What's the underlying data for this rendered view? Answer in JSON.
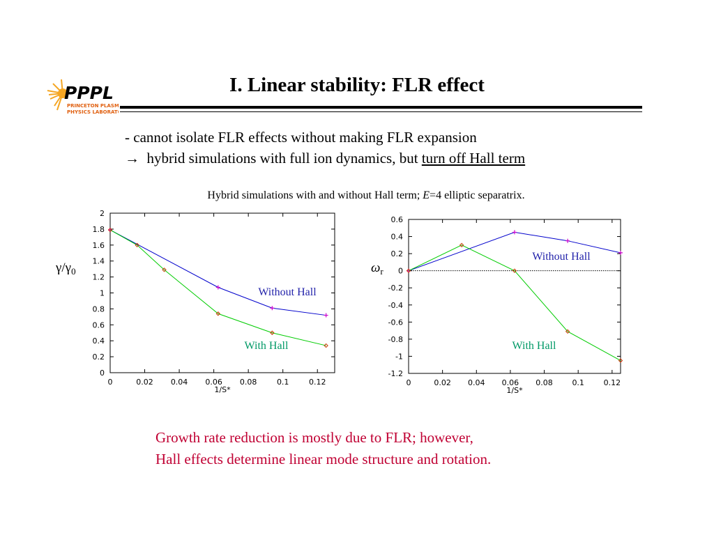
{
  "logo": {
    "text": "PPPL",
    "subtext": [
      "PRINCETON PLASMA",
      "PHYSICS LABORATORY"
    ]
  },
  "title": "I.  Linear stability: FLR effect",
  "bullets": {
    "line1": "- cannot isolate FLR effects without making FLR expansion",
    "line2_arrow": "→",
    "line2_text": "  hybrid simulations with full ion dynamics, but ",
    "line2_underlined": "turn off Hall term"
  },
  "caption": {
    "pre": "Hybrid simulations with and without Hall term; ",
    "var": "E",
    "post": "=4 elliptic separatrix."
  },
  "ylabels": {
    "left_main": "γ/γ",
    "left_sub": "0",
    "right_main": "ω",
    "right_sub": "r"
  },
  "conclusion": {
    "line1": "Growth rate reduction is mostly due to FLR; however,",
    "line2": "Hall effects determine linear mode structure and rotation."
  },
  "colors": {
    "without_hall": "#0000cc",
    "with_hall": "#00cc00",
    "without_hall_marker": "#cc00cc",
    "with_hall_marker": "#cc3300",
    "without_label": "#2222aa",
    "with_label": "#009966",
    "conclusion": "#c00033"
  },
  "chart_data": [
    {
      "type": "line",
      "xlabel": "1/S*",
      "ylabel": "γ/γ0",
      "xlim": [
        0,
        0.13
      ],
      "ylim": [
        0,
        2
      ],
      "xticks": [
        "0",
        "0.02",
        "0.04",
        "0.06",
        "0.08",
        "0.1",
        "0.12"
      ],
      "yticks": [
        "0",
        "0.2",
        "0.4",
        "0.6",
        "0.8",
        "1",
        "1.2",
        "1.4",
        "1.6",
        "1.8",
        "2"
      ],
      "zero_line": false,
      "series": [
        {
          "name": "Without Hall",
          "x": [
            0,
            0.0625,
            0.0938,
            0.125
          ],
          "y": [
            1.79,
            1.07,
            0.81,
            0.72
          ]
        },
        {
          "name": "With Hall",
          "x": [
            0,
            0.0156,
            0.0313,
            0.0625,
            0.0938,
            0.125
          ],
          "y": [
            1.79,
            1.6,
            1.29,
            0.74,
            0.5,
            0.34
          ]
        }
      ]
    },
    {
      "type": "line",
      "xlabel": "1/S*",
      "ylabel": "ωr",
      "xlim": [
        0,
        0.125
      ],
      "ylim": [
        -1.2,
        0.6
      ],
      "xticks": [
        "0",
        "0.02",
        "0.04",
        "0.06",
        "0.08",
        "0.1",
        "0.12"
      ],
      "yticks": [
        "-1.2",
        "-1",
        "-0.8",
        "-0.6",
        "-0.4",
        "-0.2",
        "0",
        "0.2",
        "0.4",
        "0.6"
      ],
      "zero_line": true,
      "series": [
        {
          "name": "Without Hall",
          "x": [
            0,
            0.0625,
            0.0938,
            0.125
          ],
          "y": [
            0,
            0.45,
            0.35,
            0.21
          ]
        },
        {
          "name": "With Hall",
          "x": [
            0,
            0.0313,
            0.0625,
            0.0938,
            0.125
          ],
          "y": [
            0,
            0.3,
            0,
            -0.71,
            -1.05
          ]
        }
      ]
    }
  ]
}
